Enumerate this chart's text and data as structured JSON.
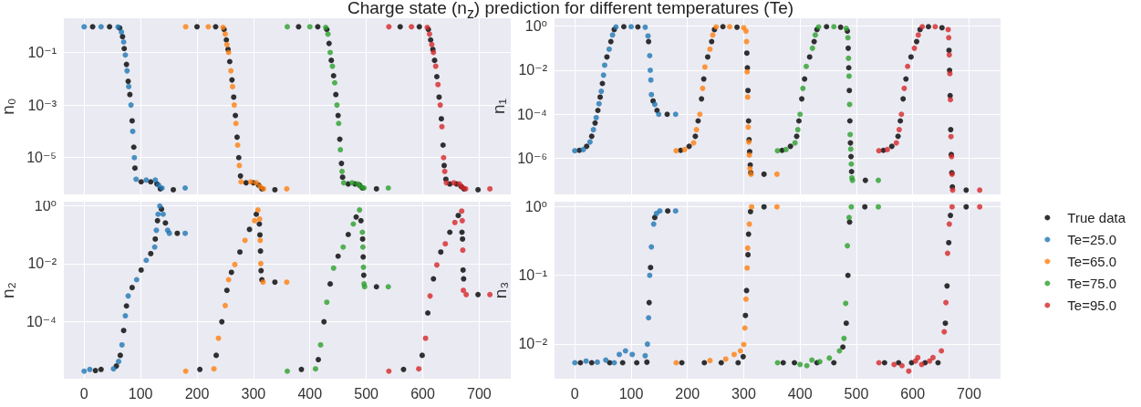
{
  "chart_data": [
    {
      "type": "scatter",
      "title": "Charge state (n$_{z}$) prediction for different temperatures (Te)",
      "ylabel": "n₀",
      "log": "y",
      "grid": true,
      "marker": "circle",
      "tick_labels": "y",
      "xlim": [
        -36,
        756
      ],
      "xticks": [
        0,
        100,
        200,
        300,
        400,
        500,
        600,
        700
      ],
      "ylim": [
        4e-07,
        2
      ],
      "yticks": [
        {
          "value": 0.1,
          "label": "10⁻¹"
        },
        {
          "value": 0.001,
          "label": "10⁻³"
        },
        {
          "value": 1e-05,
          "label": "10⁻⁵"
        }
      ],
      "series": [
        {
          "color": "#000000",
          "x": [
            15,
            45,
            63,
            68,
            71,
            75,
            78,
            81,
            85,
            88,
            90,
            101,
            118,
            129,
            135,
            158,
            200,
            233,
            248,
            252,
            255,
            258,
            262,
            265,
            268,
            271,
            274,
            277,
            287,
            300,
            309,
            315,
            338,
            380,
            414,
            430,
            434,
            438,
            442,
            446,
            450,
            453,
            456,
            458,
            468,
            480,
            488,
            493,
            518,
            560,
            594,
            610,
            614,
            618,
            621,
            625,
            629,
            633,
            636,
            638,
            641,
            648,
            660,
            668,
            673,
            698
          ],
          "values": [
            0.95,
            0.95,
            0.85,
            0.4,
            0.14,
            0.035,
            0.008,
            0.0025,
            0.00025,
            2.5e-05,
            4e-06,
            1.2e-06,
            1.2e-06,
            1e-06,
            6.5e-07,
            6e-07,
            0.95,
            0.95,
            0.75,
            0.3,
            0.13,
            0.045,
            0.009,
            0.002,
            0.0004,
            6e-05,
            1e-05,
            2e-06,
            1.1e-06,
            1.1e-06,
            9e-07,
            6.5e-07,
            6e-07,
            0.95,
            0.95,
            0.75,
            0.22,
            0.05,
            0.013,
            0.0025,
            0.0004,
            5e-05,
            6e-06,
            1.8e-06,
            1e-06,
            1e-06,
            9e-07,
            7e-07,
            6.5e-07,
            0.95,
            0.95,
            0.75,
            0.3,
            0.13,
            0.05,
            0.012,
            0.002,
            0.0003,
            3e-05,
            5e-06,
            1.5e-06,
            1e-06,
            1e-06,
            8e-07,
            6.5e-07,
            6e-07
          ]
        },
        {
          "color": "#1f77b4",
          "x": [
            0,
            30,
            60,
            66,
            70,
            73,
            76,
            79,
            83,
            86,
            89,
            92,
            110,
            126,
            132,
            138,
            179
          ],
          "values": [
            0.95,
            0.95,
            0.93,
            0.6,
            0.25,
            0.08,
            0.02,
            0.005,
            0.001,
            0.0001,
            1e-05,
            1.5e-06,
            1.4e-06,
            1.4e-06,
            9e-07,
            7e-07,
            7e-07
          ]
        },
        {
          "color": "#ff7f0e",
          "x": [
            180,
            220,
            246,
            250,
            253,
            256,
            260,
            263,
            266,
            269,
            272,
            275,
            278,
            295,
            305,
            312,
            318,
            359
          ],
          "values": [
            0.95,
            0.95,
            0.9,
            0.5,
            0.2,
            0.1,
            0.02,
            0.005,
            0.001,
            0.0002,
            3e-05,
            5e-06,
            1.2e-06,
            1.2e-06,
            1.1e-06,
            8e-07,
            6.5e-07,
            6.5e-07
          ]
        },
        {
          "color": "#2ca02c",
          "x": [
            360,
            400,
            428,
            432,
            436,
            440,
            444,
            448,
            451,
            454,
            457,
            460,
            475,
            485,
            490,
            496,
            539
          ],
          "values": [
            0.95,
            0.95,
            0.9,
            0.5,
            0.1,
            0.03,
            0.007,
            0.001,
            0.0002,
            2e-05,
            3e-06,
            1.1e-06,
            1.1e-06,
            1e-06,
            8e-07,
            7e-07,
            7e-07
          ]
        },
        {
          "color": "#d62728",
          "x": [
            540,
            580,
            608,
            612,
            616,
            619,
            623,
            627,
            631,
            634,
            637,
            639,
            642,
            655,
            665,
            670,
            676,
            719
          ],
          "values": [
            0.95,
            0.95,
            0.9,
            0.5,
            0.2,
            0.1,
            0.03,
            0.006,
            0.001,
            0.00015,
            1e-05,
            3e-06,
            1.1e-06,
            1.1e-06,
            1e-06,
            7.5e-07,
            6.5e-07,
            6.5e-07
          ]
        }
      ]
    },
    {
      "type": "scatter",
      "ylabel": "n₁",
      "log": "y",
      "grid": true,
      "marker": "circle",
      "tick_labels": "y",
      "xlim": [
        -36,
        756
      ],
      "xticks": [
        0,
        100,
        200,
        300,
        400,
        500,
        600,
        700
      ],
      "ylim": [
        2.3e-08,
        2.3
      ],
      "yticks": [
        {
          "value": 1,
          "label": "10⁰"
        },
        {
          "value": 0.01,
          "label": "10⁻²"
        },
        {
          "value": 0.0001,
          "label": "10⁻⁴"
        },
        {
          "value": 1e-06,
          "label": "10⁻⁶"
        }
      ],
      "series": [
        {
          "color": "#000000",
          "x": [
            8,
            21,
            30,
            36,
            41,
            45,
            49,
            57,
            64,
            70,
            87,
            112,
            131,
            139,
            146,
            164,
            188,
            203,
            214,
            219,
            225,
            229,
            236,
            243,
            248,
            263,
            288,
            305.5,
            306.5,
            307.5,
            308.5,
            309.5,
            310.5,
            311.5,
            312.5,
            336,
            368,
            383,
            394,
            398,
            403,
            408,
            417,
            425,
            430,
            447,
            472,
            484,
            485.5,
            486.5,
            487.5,
            488.5,
            489.5,
            490.5,
            491.5,
            516,
            548,
            563,
            574,
            578,
            583,
            588,
            597,
            607,
            613,
            628,
            652,
            664.5,
            665.5,
            666.5,
            667.5,
            668.5,
            669.5,
            670.5,
            695
          ],
          "values": [
            2.3e-06,
            3.5e-06,
            1e-05,
            4e-05,
            0.00015,
            0.0006,
            0.0025,
            0.04,
            0.2,
            0.7,
            0.95,
            0.93,
            0.2,
            0.0004,
            0.00015,
            0.0001,
            2.3e-06,
            3.5e-06,
            1e-05,
            5e-05,
            0.0005,
            0.004,
            0.04,
            0.2,
            0.7,
            0.95,
            0.9,
            0.06,
            0.013,
            0.0012,
            5e-05,
            7e-06,
            2e-06,
            5e-07,
            2.2e-07,
            1.9e-07,
            2.3e-06,
            3.5e-06,
            1e-05,
            5e-05,
            0.0005,
            0.004,
            0.04,
            0.2,
            0.7,
            0.95,
            0.9,
            0.6,
            0.1,
            0.013,
            0.0012,
            5e-05,
            5e-06,
            1.2e-06,
            2.5e-07,
            1e-07,
            2.3e-06,
            3.5e-06,
            1e-05,
            5e-05,
            0.0005,
            0.004,
            0.04,
            0.2,
            0.7,
            0.95,
            0.85,
            0.08,
            0.01,
            0.0007,
            2e-05,
            1.5e-06,
            2.2e-07,
            5e-08,
            3.6e-08
          ]
        },
        {
          "color": "#1f77b4",
          "x": [
            0,
            15,
            27,
            33,
            38,
            43,
            47,
            51,
            53,
            61,
            67,
            73,
            100,
            125,
            130,
            133,
            134,
            135,
            136,
            142,
            149,
            179
          ],
          "values": [
            2.2e-06,
            2.5e-06,
            5.5e-06,
            2e-05,
            7e-05,
            0.0003,
            0.0011,
            0.006,
            0.017,
            0.09,
            0.4,
            0.93,
            0.95,
            0.9,
            0.36,
            0.046,
            0.01,
            0.0036,
            0.00078,
            0.00028,
            0.0001,
            0.0001
          ]
        },
        {
          "color": "#ff7f0e",
          "x": [
            180,
            195,
            211,
            216,
            222,
            227,
            231,
            240,
            245,
            251,
            275,
            300,
            304,
            305,
            306,
            307,
            308,
            309,
            310,
            311,
            313,
            359
          ],
          "values": [
            2.2e-06,
            2.5e-06,
            5e-06,
            2e-05,
            0.0001,
            0.0015,
            0.014,
            0.09,
            0.4,
            0.93,
            0.95,
            0.85,
            0.6,
            0.2,
            0.0085,
            0.0006,
            2.6e-05,
            5.5e-06,
            1.4e-06,
            3.4e-07,
            1.9e-07,
            1.9e-07
          ]
        },
        {
          "color": "#2ca02c",
          "x": [
            360,
            375,
            391,
            396,
            400,
            405,
            411,
            422,
            427,
            433,
            460,
            482,
            485,
            486,
            487,
            488,
            489,
            490,
            491,
            492,
            493,
            539
          ],
          "values": [
            2.2e-06,
            2.5e-06,
            5e-06,
            2e-05,
            0.0001,
            0.0015,
            0.015,
            0.1,
            0.4,
            0.93,
            0.95,
            0.8,
            0.3,
            0.035,
            0.0054,
            0.00028,
            1.2e-05,
            2.6e-06,
            5.5e-07,
            1.3e-07,
            1e-07,
            1e-07
          ]
        },
        {
          "color": "#d62728",
          "x": [
            540,
            555,
            571,
            576,
            580,
            585,
            591,
            603,
            610,
            617,
            640,
            663,
            664,
            665,
            666,
            667,
            668,
            669,
            670,
            671,
            719
          ],
          "values": [
            2.2e-06,
            2.5e-06,
            5e-06,
            2e-05,
            0.0001,
            0.0015,
            0.015,
            0.1,
            0.4,
            0.95,
            0.95,
            0.7,
            0.3,
            0.05,
            0.007,
            0.00046,
            9.7e-06,
            1.2e-06,
            1.9e-07,
            3.6e-08,
            3.6e-08
          ]
        }
      ]
    },
    {
      "type": "scatter",
      "ylabel": "n₂",
      "log": "y",
      "grid": true,
      "marker": "circle",
      "xlim": [
        -36,
        756
      ],
      "xticks": [
        0,
        100,
        200,
        300,
        400,
        500,
        600,
        700
      ],
      "ylim": [
        1.1e-06,
        1.35
      ],
      "yticks": [
        {
          "value": 1,
          "label": "10⁰"
        },
        {
          "value": 0.01,
          "label": "10⁻²"
        },
        {
          "value": 0.0001,
          "label": "10⁻⁴"
        }
      ],
      "series": [
        {
          "color": "#000000",
          "x": [
            20,
            30,
            57,
            64,
            70,
            75,
            85,
            101,
            118,
            126,
            130,
            137,
            144,
            165,
            205,
            234,
            244,
            253,
            261,
            276,
            293,
            305,
            310.5,
            311.5,
            312.5,
            313.5,
            315,
            338,
            385,
            415,
            425,
            436,
            450,
            468,
            482,
            490.5,
            493.5,
            494.5,
            495.5,
            518,
            566,
            599,
            609,
            619,
            632,
            648,
            663,
            669.5,
            670.5,
            671.5,
            672.5,
            698
          ],
          "values": [
            2.1e-06,
            2.3e-06,
            3e-06,
            7e-06,
            5e-05,
            0.00035,
            0.0015,
            0.006,
            0.022,
            0.07,
            0.3,
            0.75,
            0.25,
            0.11,
            2.3e-06,
            7e-06,
            0.0001,
            0.0012,
            0.005,
            0.025,
            0.15,
            0.5,
            0.23,
            0.097,
            0.027,
            0.0057,
            0.0028,
            0.0023,
            2.3e-06,
            5e-06,
            0.0001,
            0.002,
            0.018,
            0.1,
            0.4,
            0.3,
            0.07,
            0.017,
            0.004,
            0.0016,
            2.3e-06,
            7e-06,
            0.0002,
            0.003,
            0.025,
            0.12,
            0.45,
            0.12,
            0.07,
            0.006,
            0.003,
            0.00086
          ]
        },
        {
          "color": "#1f77b4",
          "x": [
            0,
            10,
            52,
            61,
            67,
            73,
            78,
            93,
            110,
            125,
            128,
            131,
            134,
            140,
            148,
            151,
            179
          ],
          "values": [
            2e-06,
            2.3e-06,
            2.4e-06,
            4.3e-06,
            1.6e-05,
            0.00016,
            0.00077,
            0.0028,
            0.013,
            0.037,
            0.14,
            0.5,
            0.95,
            0.5,
            0.14,
            0.11,
            0.11
          ]
        },
        {
          "color": "#ff7f0e",
          "x": [
            180,
            230,
            238,
            250,
            256,
            267,
            285,
            302,
            308,
            311,
            312,
            313,
            317,
            359
          ],
          "values": [
            2e-06,
            2.4e-06,
            2.7e-05,
            0.00036,
            0.0028,
            0.0093,
            0.063,
            0.3,
            0.7,
            0.34,
            0.063,
            0.01,
            0.0023,
            0.0023
          ]
        },
        {
          "color": "#2ca02c",
          "x": [
            360,
            410,
            419,
            430,
            442,
            459,
            477,
            488,
            493,
            494,
            495,
            496,
            497,
            539
          ],
          "values": [
            2e-06,
            2.4e-06,
            1.6e-05,
            0.00047,
            0.007,
            0.037,
            0.23,
            0.7,
            0.12,
            0.037,
            0.0075,
            0.002,
            0.0016,
            0.0016
          ]
        },
        {
          "color": "#d62728",
          "x": [
            540,
            593,
            605,
            613,
            625,
            640,
            657,
            669,
            670,
            671,
            672,
            677,
            719
          ],
          "values": [
            2e-06,
            2.4e-06,
            2.7e-05,
            0.00077,
            0.009,
            0.048,
            0.26,
            0.64,
            0.3,
            0.029,
            0.0012,
            0.00086,
            0.00086
          ]
        }
      ]
    },
    {
      "type": "scatter",
      "ylabel": "n₃",
      "log": "y",
      "grid": true,
      "marker": "circle",
      "legend": "right",
      "xlim": [
        -36,
        756
      ],
      "xticks": [
        0,
        100,
        200,
        300,
        400,
        500,
        600,
        700
      ],
      "ylim": [
        0.0031,
        1.19
      ],
      "yticks": [
        {
          "value": 1,
          "label": "10⁰"
        },
        {
          "value": 0.1,
          "label": "10⁻¹"
        },
        {
          "value": 0.01,
          "label": "10⁻²"
        }
      ],
      "series": [
        {
          "name": "True data",
          "color": "#000000",
          "x": [
            10,
            30,
            62,
            85,
            110,
            128,
            132,
            134.5,
            142,
            165,
            190,
            230,
            260,
            290,
            299,
            303,
            305,
            307.5,
            308.5,
            312,
            336,
            370,
            390,
            430,
            460,
            476,
            482,
            485,
            488,
            515,
            550,
            575,
            598,
            622,
            645,
            658,
            661,
            664,
            667,
            695
          ],
          "values": [
            0.0053,
            0.0053,
            0.0053,
            0.0053,
            0.0053,
            0.0054,
            0.04,
            0.13,
            0.7,
            0.87,
            0.0053,
            0.0053,
            0.0053,
            0.0053,
            0.0065,
            0.026,
            0.06,
            0.2,
            0.4,
            0.85,
            1.0,
            0.0053,
            0.0053,
            0.0053,
            0.0053,
            0.009,
            0.02,
            0.1,
            0.6,
            1.0,
            0.0053,
            0.0053,
            0.0053,
            0.0053,
            0.0053,
            0.02,
            0.07,
            0.3,
            0.75,
            1.0
          ]
        },
        {
          "name": "Te=25.0",
          "color": "#1f77b4",
          "x": [
            0,
            20,
            40,
            55,
            70,
            79,
            90,
            102,
            125,
            129,
            131,
            133,
            136,
            140,
            145,
            151,
            179
          ],
          "values": [
            0.0053,
            0.0056,
            0.0054,
            0.0058,
            0.0053,
            0.007,
            0.0079,
            0.007,
            0.0067,
            0.0099,
            0.024,
            0.1,
            0.26,
            0.56,
            0.8,
            0.87,
            0.87
          ]
        },
        {
          "name": "Te=65.0",
          "color": "#ff7f0e",
          "x": [
            180,
            240,
            268,
            283,
            294,
            300,
            302,
            304,
            306,
            307,
            310,
            314,
            359
          ],
          "values": [
            0.0053,
            0.0057,
            0.006,
            0.007,
            0.0079,
            0.0098,
            0.017,
            0.045,
            0.128,
            0.25,
            0.56,
            1.0,
            1.0
          ]
        },
        {
          "name": "Te=75.0",
          "color": "#2ca02c",
          "x": [
            360,
            400,
            412,
            421,
            435,
            452,
            470,
            478,
            481,
            484,
            487,
            491,
            539
          ],
          "values": [
            0.0053,
            0.005,
            0.0048,
            0.0058,
            0.0055,
            0.0062,
            0.0079,
            0.012,
            0.039,
            0.27,
            0.7,
            1.0,
            1.0
          ]
        },
        {
          "name": "Te=95.0",
          "color": "#d62728",
          "x": [
            540,
            567,
            581,
            593,
            605,
            609,
            616,
            630,
            636,
            651,
            656,
            659,
            662,
            665,
            670,
            719
          ],
          "values": [
            0.0053,
            0.005,
            0.0048,
            0.004,
            0.0056,
            0.0063,
            0.005,
            0.0056,
            0.0063,
            0.0079,
            0.015,
            0.04,
            0.21,
            0.56,
            1.0,
            1.0
          ]
        }
      ]
    }
  ]
}
